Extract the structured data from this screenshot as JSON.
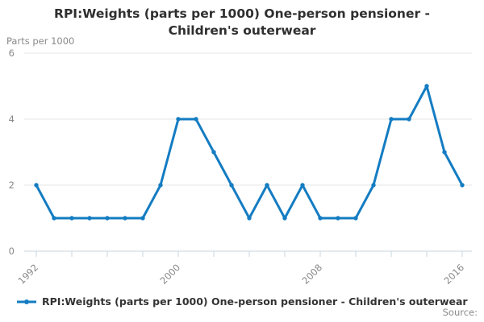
{
  "header": {
    "title_line1": "RPI:Weights (parts per 1000) One-person pensioner -",
    "title_line2": "Children's outerwear"
  },
  "legend": {
    "label": "RPI:Weights (parts per 1000) One-person pensioner - Children's outerwear"
  },
  "footer": {
    "source_label": "Source:"
  },
  "chart_data": {
    "type": "line",
    "title": "RPI:Weights (parts per 1000) One-person pensioner - Children's outerwear",
    "ylabel": "Parts per 1000",
    "xlabel": "",
    "x": [
      1992,
      1993,
      1994,
      1995,
      1996,
      1997,
      1998,
      1999,
      2000,
      2001,
      2002,
      2003,
      2004,
      2005,
      2006,
      2007,
      2008,
      2009,
      2010,
      2011,
      2012,
      2013,
      2014,
      2015,
      2016
    ],
    "series": [
      {
        "name": "RPI:Weights (parts per 1000) One-person pensioner - Children's outerwear",
        "values": [
          2,
          1,
          1,
          1,
          1,
          1,
          1,
          2,
          4,
          4,
          3,
          2,
          1,
          2,
          1,
          2,
          1,
          1,
          1,
          2,
          4,
          4,
          5,
          3,
          2
        ]
      }
    ],
    "ylim": [
      0,
      6
    ],
    "yticks": [
      0,
      2,
      4,
      6
    ],
    "xtick_step": 2,
    "xtick_labels": [
      1992,
      2000,
      2008,
      2016
    ],
    "grid": true,
    "legend_position": "bottom-left",
    "line_color": "#147cc2",
    "grid_color": "#e6e6e6",
    "axis_color": "#c9d4de",
    "tick_label_color": "#888888",
    "marker": "circle"
  }
}
